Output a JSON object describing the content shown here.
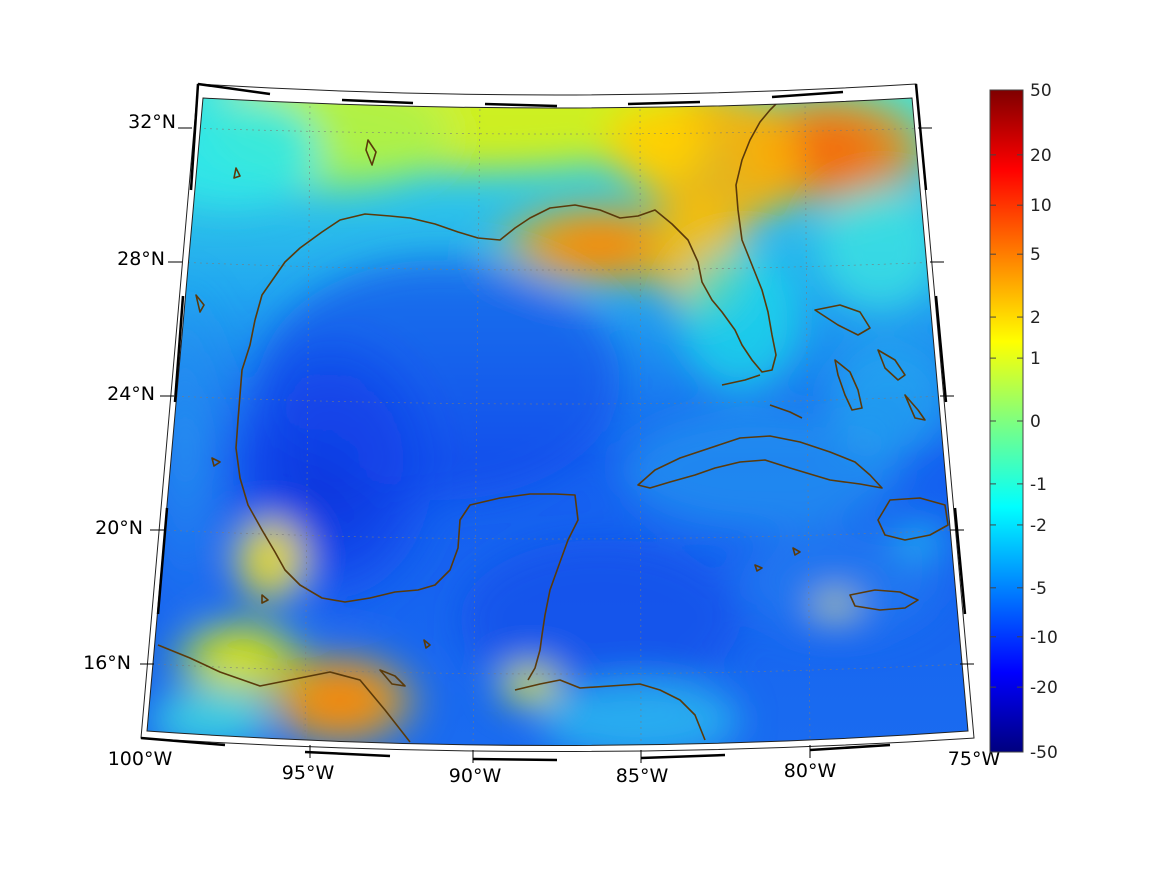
{
  "map": {
    "lon_labels": [
      "100°W",
      "95°W",
      "90°W",
      "85°W",
      "80°W",
      "75°W"
    ],
    "lat_labels": [
      "32°N",
      "28°N",
      "24°N",
      "20°N",
      "16°N"
    ],
    "extent": {
      "lon_min": -100,
      "lon_max": -75,
      "lat_min": 14,
      "lat_max": 33
    },
    "projection": "conic",
    "gridlines": "dotted",
    "coastline_color": "#5a3a0a"
  },
  "colorbar": {
    "colormap": "jet",
    "tick_labels": [
      "50",
      "20",
      "10",
      "5",
      "2",
      "1",
      "0",
      "-1",
      "-2",
      "-5",
      "-10",
      "-20",
      "-50"
    ],
    "range": [
      -50,
      50
    ],
    "scale": "symmetric-log"
  },
  "field": {
    "description_color_regions": [
      {
        "region": "Gulf of Mexico interior",
        "level": "-10 to -20"
      },
      {
        "region": "Bay of Campeche",
        "level": "-20"
      },
      {
        "region": "Northern Gulf coast / Florida panhandle",
        "level": "2 to 5"
      },
      {
        "region": "Southeastern US (Georgia / South Carolina)",
        "level": "5 to 10"
      },
      {
        "region": "Guatemala / Honduras",
        "level": "2 to 5"
      },
      {
        "region": "Caribbean Sea",
        "level": "-5 to -10"
      }
    ]
  }
}
